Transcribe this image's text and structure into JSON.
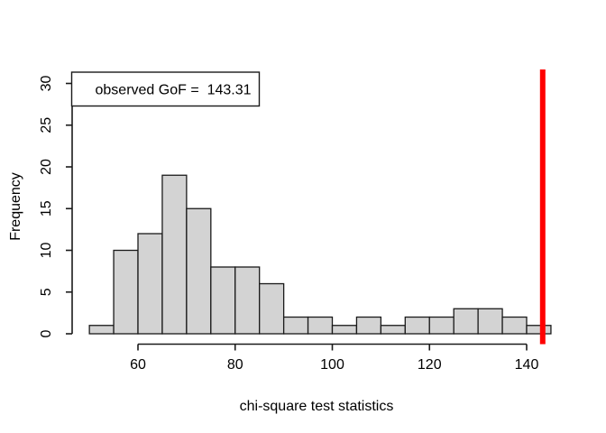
{
  "chart_data": {
    "type": "histogram",
    "title": "",
    "xlabel": "chi-square test statistics",
    "ylabel": "Frequency",
    "bins": {
      "start": 50,
      "width": 5
    },
    "counts": [
      1,
      10,
      12,
      19,
      15,
      8,
      8,
      6,
      2,
      2,
      1,
      2,
      1,
      2,
      2,
      3,
      3,
      2,
      1
    ],
    "x_ticks": [
      60,
      80,
      100,
      120,
      140
    ],
    "y_ticks": [
      0,
      5,
      10,
      15,
      20,
      25,
      30
    ],
    "xlim": [
      50,
      145
    ],
    "ylim": [
      0,
      30
    ],
    "grid": false,
    "legend_position": "topleft",
    "legend": {
      "label": "observed GoF =  143.31"
    },
    "observed_line": {
      "value": 143.31,
      "color": "#FF0000"
    },
    "colors": {
      "bar_fill": "#D3D3D3",
      "bar_border": "#1A1A1A",
      "axis": "#1A1A1A",
      "background": "#FFFFFF",
      "legend_box_border": "#1A1A1A",
      "legend_box_fill": "#FFFFFF"
    }
  }
}
